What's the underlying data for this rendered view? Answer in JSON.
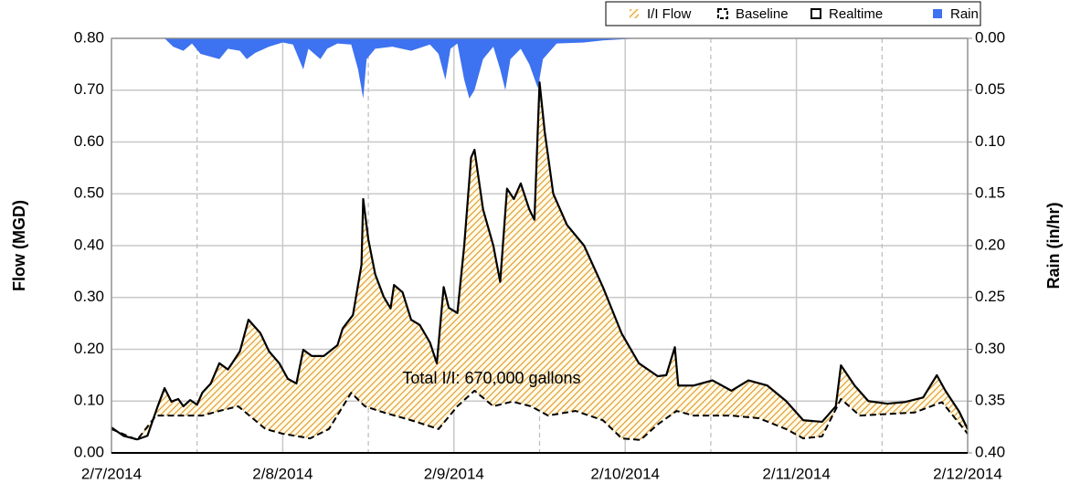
{
  "chart_data": {
    "type": "line",
    "ylabel": "Flow (MGD)",
    "y2label": "Rain (in/hr)",
    "annotation": "Total I/I: 670,000 gallons",
    "xlim": [
      0,
      5
    ],
    "xticks": [
      {
        "value": 0,
        "label": "2/7/2014"
      },
      {
        "value": 1,
        "label": "2/8/2014"
      },
      {
        "value": 2,
        "label": "2/9/2014"
      },
      {
        "value": 3,
        "label": "2/10/2014"
      },
      {
        "value": 4,
        "label": "2/11/2014"
      },
      {
        "value": 5,
        "label": "2/12/2014"
      }
    ],
    "xminorticks": [
      0.5,
      1.5,
      2.5,
      3.5,
      4.5
    ],
    "ylim": [
      0,
      0.8
    ],
    "yticks": [
      {
        "value": 0,
        "label": "0.00"
      },
      {
        "value": 0.1,
        "label": "0.10"
      },
      {
        "value": 0.2,
        "label": "0.20"
      },
      {
        "value": 0.3,
        "label": "0.30"
      },
      {
        "value": 0.4,
        "label": "0.40"
      },
      {
        "value": 0.5,
        "label": "0.50"
      },
      {
        "value": 0.6,
        "label": "0.60"
      },
      {
        "value": 0.7,
        "label": "0.70"
      },
      {
        "value": 0.8,
        "label": "0.80"
      }
    ],
    "y2lim": [
      0,
      0.4
    ],
    "y2inverted": true,
    "y2ticks": [
      {
        "value": 0,
        "label": "0.00"
      },
      {
        "value": 0.05,
        "label": "0.05"
      },
      {
        "value": 0.1,
        "label": "0.10"
      },
      {
        "value": 0.15,
        "label": "0.15"
      },
      {
        "value": 0.2,
        "label": "0.20"
      },
      {
        "value": 0.25,
        "label": "0.25"
      },
      {
        "value": 0.3,
        "label": "0.30"
      },
      {
        "value": 0.35,
        "label": "0.35"
      },
      {
        "value": 0.4,
        "label": "0.40"
      }
    ],
    "grid": true,
    "legend": "top right",
    "series": [
      {
        "name": "I/I Flow",
        "color": "#e0952a"
      },
      {
        "name": "Baseline",
        "color": "#000000",
        "x": [
          0,
          0.15,
          0.26,
          0.36,
          0.53,
          0.63,
          0.74,
          0.9,
          1,
          1.16,
          1.27,
          1.4,
          1.48,
          1.59,
          1.75,
          1.91,
          2.02,
          2.12,
          2.23,
          2.34,
          2.45,
          2.55,
          2.71,
          2.87,
          2.98,
          3.09,
          3.19,
          3.3,
          3.4,
          3.62,
          3.78,
          3.94,
          4.04,
          4.15,
          4.26,
          4.37,
          4.69,
          4.85,
          5
        ],
        "values": [
          0.046,
          0.025,
          0.072,
          0.072,
          0.072,
          0.081,
          0.09,
          0.046,
          0.037,
          0.028,
          0.046,
          0.116,
          0.09,
          0.078,
          0.063,
          0.046,
          0.09,
          0.12,
          0.09,
          0.099,
          0.09,
          0.072,
          0.081,
          0.063,
          0.028,
          0.025,
          0.055,
          0.081,
          0.072,
          0.072,
          0.067,
          0.046,
          0.028,
          0.032,
          0.104,
          0.072,
          0.078,
          0.098,
          0.037
        ]
      },
      {
        "name": "Realtime",
        "color": "#000000",
        "x": [
          0,
          0.07,
          0.15,
          0.21,
          0.27,
          0.31,
          0.35,
          0.39,
          0.42,
          0.46,
          0.5,
          0.53,
          0.58,
          0.63,
          0.68,
          0.75,
          0.8,
          0.87,
          0.92,
          0.98,
          1.03,
          1.08,
          1.12,
          1.17,
          1.24,
          1.32,
          1.35,
          1.41,
          1.46,
          1.47,
          1.5,
          1.54,
          1.59,
          1.63,
          1.65,
          1.7,
          1.75,
          1.8,
          1.86,
          1.9,
          1.94,
          1.97,
          2.02,
          2.06,
          2.1,
          2.12,
          2.17,
          2.23,
          2.27,
          2.31,
          2.35,
          2.39,
          2.44,
          2.47,
          2.5,
          2.53,
          2.58,
          2.66,
          2.76,
          2.87,
          2.98,
          3.08,
          3.19,
          3.24,
          3.29,
          3.31,
          3.4,
          3.51,
          3.62,
          3.72,
          3.83,
          3.94,
          4.04,
          4.15,
          4.23,
          4.26,
          4.34,
          4.42,
          4.53,
          4.63,
          4.74,
          4.82,
          4.87,
          4.95,
          5
        ],
        "values": [
          0.049,
          0.033,
          0.026,
          0.033,
          0.09,
          0.125,
          0.099,
          0.104,
          0.09,
          0.102,
          0.093,
          0.116,
          0.134,
          0.173,
          0.161,
          0.196,
          0.257,
          0.231,
          0.196,
          0.173,
          0.143,
          0.134,
          0.199,
          0.187,
          0.187,
          0.208,
          0.24,
          0.266,
          0.363,
          0.49,
          0.412,
          0.345,
          0.301,
          0.279,
          0.324,
          0.31,
          0.257,
          0.247,
          0.213,
          0.173,
          0.32,
          0.28,
          0.27,
          0.4,
          0.57,
          0.585,
          0.47,
          0.4,
          0.33,
          0.51,
          0.49,
          0.52,
          0.47,
          0.45,
          0.715,
          0.62,
          0.5,
          0.44,
          0.4,
          0.32,
          0.23,
          0.173,
          0.148,
          0.15,
          0.204,
          0.13,
          0.13,
          0.14,
          0.12,
          0.14,
          0.13,
          0.1,
          0.063,
          0.06,
          0.09,
          0.169,
          0.13,
          0.1,
          0.095,
          0.098,
          0.107,
          0.15,
          0.12,
          0.08,
          0.046
        ]
      },
      {
        "name": "Rain",
        "color": "#3d72f0",
        "axis": "y2",
        "x": [
          0.31,
          0.36,
          0.42,
          0.47,
          0.52,
          0.63,
          0.68,
          0.75,
          0.79,
          0.84,
          0.92,
          1,
          1.06,
          1.12,
          1.15,
          1.22,
          1.26,
          1.32,
          1.4,
          1.44,
          1.47,
          1.49,
          1.54,
          1.64,
          1.75,
          1.86,
          1.91,
          1.95,
          1.98,
          2.02,
          2.06,
          2.09,
          2.12,
          2.17,
          2.23,
          2.27,
          2.3,
          2.33,
          2.39,
          2.44,
          2.49,
          2.52,
          2.6,
          2.76,
          2.87,
          3.08
        ],
        "values": [
          0,
          0.008,
          0.012,
          0.005,
          0.015,
          0.02,
          0.01,
          0.012,
          0.02,
          0.014,
          0.008,
          0.004,
          0.006,
          0.03,
          0.01,
          0.02,
          0.01,
          0.005,
          0.006,
          0.03,
          0.058,
          0.02,
          0.01,
          0.008,
          0.012,
          0.006,
          0.015,
          0.04,
          0.01,
          0.005,
          0.04,
          0.058,
          0.05,
          0.02,
          0.008,
          0.03,
          0.05,
          0.02,
          0.01,
          0.025,
          0.048,
          0.02,
          0.005,
          0.004,
          0.002,
          0
        ]
      }
    ]
  }
}
